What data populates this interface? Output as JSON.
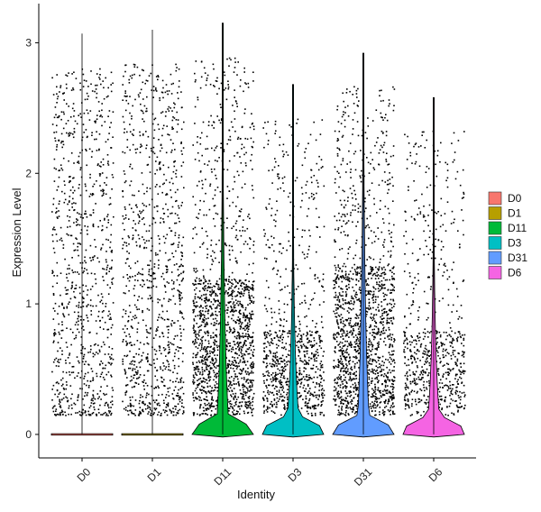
{
  "chart_data": {
    "type": "violin",
    "title": "",
    "xlabel": "Identity",
    "ylabel": "Expression Level",
    "categories": [
      "D0",
      "D1",
      "D11",
      "D3",
      "D31",
      "D6"
    ],
    "colors": {
      "D0": "#F8766D",
      "D1": "#B79F00",
      "D11": "#00BA38",
      "D3": "#00BFC4",
      "D31": "#619CFF",
      "D6": "#F564E3"
    },
    "ylim": [
      -0.18,
      3.3
    ],
    "yticks": [
      0,
      1,
      2,
      3
    ],
    "series": [
      {
        "name": "D0",
        "max": 3.07,
        "median": 0,
        "point_density": 0.55,
        "dense_upper": 0.0
      },
      {
        "name": "D1",
        "max": 3.1,
        "median": 0,
        "point_density": 0.6,
        "dense_upper": 0.0
      },
      {
        "name": "D11",
        "max": 3.15,
        "median": 0.6,
        "point_density": 1.0,
        "dense_upper": 1.0
      },
      {
        "name": "D3",
        "max": 2.68,
        "median": 0.4,
        "point_density": 0.55,
        "dense_upper": 0.6
      },
      {
        "name": "D31",
        "max": 2.92,
        "median": 0.7,
        "point_density": 1.0,
        "dense_upper": 1.1
      },
      {
        "name": "D6",
        "max": 2.58,
        "median": 0.4,
        "point_density": 0.45,
        "dense_upper": 0.6
      }
    ],
    "legend": {
      "title": "",
      "placement": "right",
      "entries": [
        "D0",
        "D1",
        "D11",
        "D3",
        "D31",
        "D6"
      ]
    },
    "grid": false
  }
}
